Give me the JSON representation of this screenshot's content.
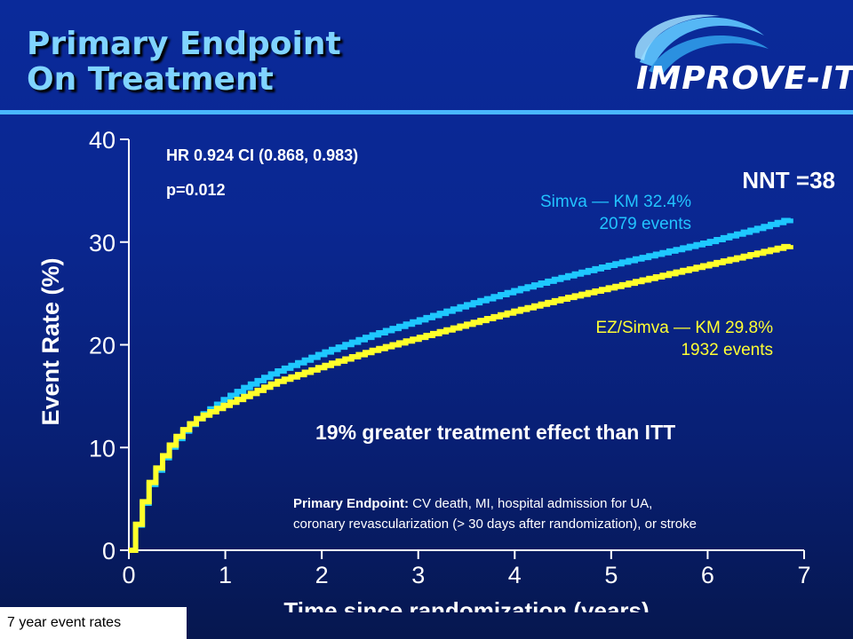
{
  "slide": {
    "title_line1": "Primary Endpoint",
    "title_line2": "On Treatment",
    "logo_text": "IMPROVE-IT",
    "footer": "7 year event rates",
    "hr_text": "HR 0.924 CI (0.868, 0.983)",
    "p_text": "p=0.012",
    "nnt_text": "NNT =38",
    "simva_line1": "Simva — KM 32.4%",
    "simva_line2": "2079 events",
    "ez_line1": "EZ/Simva — KM 29.8%",
    "ez_line2": "1932 events",
    "effect_text": "19% greater treatment effect than ITT",
    "definition_label": "Primary Endpoint:",
    "definition_line1": " CV death, MI, hospital admission for UA,",
    "definition_line2": "coronary revascularization (> 30 days after randomization), or stroke"
  },
  "colors": {
    "simva": "#1ec8ff",
    "ezsimva": "#ffff2a",
    "axis": "#ffffff",
    "title": "#80d4ff",
    "rule": "#49b7ff"
  },
  "chart_data": {
    "type": "line",
    "xlabel": "Time since randomization (years)",
    "ylabel": "Event Rate (%)",
    "xlim": [
      0,
      7
    ],
    "ylim": [
      0,
      40
    ],
    "x_ticks": [
      0,
      1,
      2,
      3,
      4,
      5,
      6,
      7
    ],
    "y_ticks": [
      0,
      10,
      20,
      30,
      40
    ],
    "grid": false,
    "legend": "direct labels",
    "series": [
      {
        "name": "Simva",
        "color": "#1ec8ff",
        "x": [
          0,
          0.1,
          0.2,
          0.3,
          0.4,
          0.5,
          0.6,
          0.7,
          0.8,
          1.0,
          1.2,
          1.5,
          2.0,
          2.5,
          3.0,
          3.5,
          4.0,
          4.5,
          5.0,
          5.5,
          6.0,
          6.5,
          6.9
        ],
        "y": [
          0,
          3.5,
          6.2,
          8.2,
          9.8,
          11.0,
          12.0,
          12.8,
          13.5,
          14.8,
          15.9,
          17.3,
          19.2,
          20.9,
          22.4,
          23.9,
          25.3,
          26.6,
          27.8,
          28.9,
          30.0,
          31.3,
          32.4
        ]
      },
      {
        "name": "EZ/Simva",
        "color": "#ffff2a",
        "x": [
          0,
          0.1,
          0.2,
          0.3,
          0.4,
          0.5,
          0.6,
          0.7,
          0.8,
          1.0,
          1.2,
          1.5,
          2.0,
          2.5,
          3.0,
          3.5,
          4.0,
          4.5,
          5.0,
          5.5,
          6.0,
          6.5,
          6.9
        ],
        "y": [
          0,
          3.6,
          6.4,
          8.4,
          10.0,
          11.2,
          12.1,
          12.8,
          13.3,
          14.2,
          15.0,
          16.3,
          17.9,
          19.4,
          20.7,
          22.0,
          23.3,
          24.5,
          25.6,
          26.7,
          27.8,
          28.9,
          29.8
        ]
      }
    ]
  }
}
